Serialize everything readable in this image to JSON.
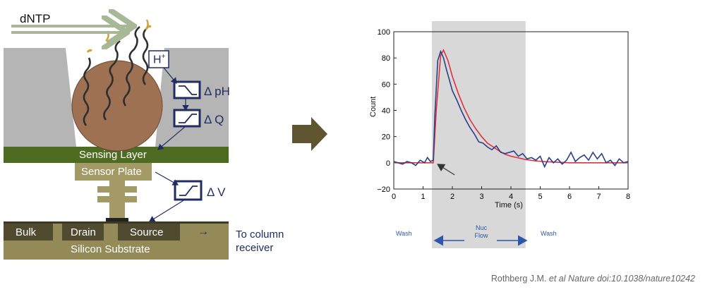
{
  "diagram": {
    "flow_label": "dNTP",
    "proton_label": "H",
    "proton_charge": "+",
    "delta_ph": "Δ pH",
    "delta_q": "Δ Q",
    "delta_v": "Δ V",
    "sensing_layer": "Sensing Layer",
    "sensor_plate": "Sensor Plate",
    "bulk": "Bulk",
    "drain": "Drain",
    "source": "Source",
    "substrate": "Silicon Substrate",
    "to_column_line1": "To column",
    "to_column_line2": "receiver",
    "arrow_symbol": "→"
  },
  "colors": {
    "sensing_layer": "#4e6b22",
    "plate_tan": "#a49a66",
    "substrate": "#938a58",
    "well_gray": "#b5b5b5",
    "bead": "#9e7152",
    "navy": "#1f2d63",
    "flow_arrow": "#a8b896",
    "big_arrow": "#5f5530",
    "signal_blue": "#2b3e88",
    "fit_red": "#e0323c",
    "shade": "#d8d8d8",
    "phase_blue": "#2d58a8"
  },
  "chart_data": {
    "type": "line",
    "xlabel": "Time (s)",
    "ylabel": "Count",
    "xlim": [
      0,
      8
    ],
    "ylim": [
      -20,
      100
    ],
    "xticks": [
      0,
      1,
      2,
      3,
      4,
      5,
      6,
      7,
      8
    ],
    "yticks": [
      -20,
      0,
      20,
      40,
      60,
      80,
      100
    ],
    "shaded_region": [
      1.3,
      4.5
    ],
    "annotation_arrow_target": [
      1.4,
      0
    ],
    "phases": [
      "Wash",
      "Nuc Flow",
      "Wash"
    ],
    "series": [
      {
        "x": [
          0.0,
          0.15,
          0.3,
          0.45,
          0.6,
          0.75,
          0.9,
          1.05,
          1.15,
          1.25,
          1.35,
          1.4,
          1.5,
          1.6,
          1.7,
          1.8,
          1.9,
          2.0,
          2.15,
          2.3,
          2.45,
          2.6,
          2.75,
          2.9,
          3.05,
          3.2,
          3.35,
          3.5,
          3.65,
          3.8,
          3.95,
          4.1,
          4.25,
          4.4,
          4.55,
          4.7,
          4.85,
          5.0,
          5.15,
          5.3,
          5.45,
          5.6,
          5.75,
          5.9,
          6.05,
          6.2,
          6.35,
          6.5,
          6.65,
          6.8,
          6.95,
          7.1,
          7.25,
          7.4,
          7.55,
          7.7,
          7.85,
          8.0
        ],
        "y": [
          1,
          0,
          -1,
          1,
          0,
          -2,
          2,
          0,
          4,
          1,
          2,
          35,
          78,
          85,
          80,
          71,
          63,
          55,
          48,
          40,
          33,
          27,
          22,
          16,
          15,
          12,
          10,
          13,
          8,
          7,
          8,
          9,
          5,
          7,
          3,
          4,
          2,
          5,
          -3,
          4,
          0,
          3,
          -1,
          2,
          8,
          1,
          4,
          6,
          2,
          8,
          3,
          7,
          0,
          2,
          -2,
          3,
          0,
          1
        ]
      },
      {
        "x": [
          0,
          1.35,
          1.45,
          1.6,
          1.7,
          1.85,
          2.0,
          2.2,
          2.4,
          2.6,
          2.8,
          3.0,
          3.2,
          3.4,
          3.6,
          3.8,
          4.0,
          4.2,
          4.5,
          4.8,
          5.2,
          6.0,
          7.0,
          8.0
        ],
        "y": [
          0,
          0,
          40,
          82,
          86,
          78,
          66,
          53,
          42,
          33,
          26,
          20,
          15,
          12,
          9,
          6.5,
          5,
          4,
          2.5,
          1.5,
          0.8,
          0,
          0,
          0
        ]
      }
    ]
  },
  "citation": {
    "authors": "Rothberg J.M.",
    "journal_italic": "et al Nature doi:10.1038/nature10242"
  }
}
